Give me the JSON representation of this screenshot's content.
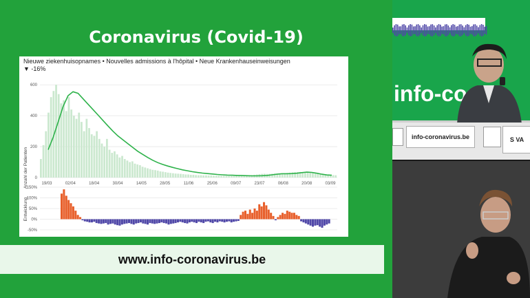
{
  "slide": {
    "title": "Coronavirus (Covid-19)",
    "url": "www.info-coronavirus.be"
  },
  "chart_header": {
    "title": "Nieuwe ziekenhuisopnames • Nouvelles admissions à l'hôpital • Neue Krankenhauseinweisungen",
    "change": "▼ -16%"
  },
  "chart_data": [
    {
      "type": "bar",
      "title": "Nieuwe ziekenhuisopnames • Nouvelles admissions à l'hôpital • Neue Krankenhauseinweisungen",
      "ylabel": "Anzahl der Patienten",
      "ylim": [
        0,
        650
      ],
      "yticks": [
        "600",
        "400",
        "200",
        "0"
      ],
      "xticks": [
        "19/03",
        "02/04",
        "18/04",
        "30/04",
        "14/05",
        "28/05",
        "11/06",
        "25/06",
        "09/07",
        "23/07",
        "06/08",
        "20/08",
        "03/09"
      ],
      "series": [
        {
          "type": "bar",
          "values": [
            120,
            210,
            300,
            420,
            520,
            560,
            600,
            540,
            480,
            500,
            430,
            520,
            440,
            400,
            380,
            420,
            360,
            300,
            380,
            320,
            280,
            270,
            300,
            250,
            220,
            200,
            250,
            180,
            160,
            170,
            150,
            130,
            140,
            120,
            110,
            100,
            105,
            90,
            85,
            80,
            70,
            65,
            60,
            55,
            50,
            48,
            45,
            40,
            38,
            35,
            32,
            30,
            28,
            26,
            25,
            24,
            22,
            20,
            20,
            18,
            18,
            16,
            15,
            15,
            14,
            14,
            13,
            13,
            12,
            12,
            12,
            11,
            11,
            10,
            10,
            10,
            10,
            11,
            11,
            12,
            13,
            14,
            15,
            16,
            18,
            20,
            22,
            24,
            25,
            24,
            24,
            25,
            26,
            25,
            24,
            26,
            28,
            30,
            32,
            34,
            35,
            36,
            36,
            35,
            34,
            32,
            30,
            28,
            26,
            24,
            22,
            20,
            19,
            18,
            17,
            16,
            15
          ]
        },
        {
          "type": "line",
          "values": [
            180,
            260,
            360,
            460,
            530,
            555,
            545,
            510,
            475,
            440,
            405,
            370,
            335,
            300,
            270,
            245,
            220,
            195,
            170,
            150,
            130,
            112,
            97,
            85,
            75,
            66,
            58,
            50,
            44,
            38,
            33,
            29,
            26,
            23,
            20,
            18,
            16,
            15,
            14,
            13,
            12,
            11,
            11,
            12,
            14,
            18,
            22,
            25,
            25,
            26,
            28,
            32,
            35,
            33,
            28,
            22,
            17,
            15
          ]
        }
      ]
    },
    {
      "type": "bar",
      "ylabel": "Entwicklung",
      "ylim": [
        -50,
        150
      ],
      "yticks": [
        "150%",
        "100%",
        "50%",
        "0%",
        "-50%"
      ],
      "values": [
        120,
        140,
        110,
        90,
        75,
        60,
        40,
        20,
        10,
        -5,
        -10,
        -12,
        -15,
        -15,
        -12,
        -18,
        -20,
        -22,
        -20,
        -18,
        -25,
        -22,
        -20,
        -25,
        -28,
        -30,
        -25,
        -22,
        -20,
        -18,
        -22,
        -25,
        -20,
        -18,
        -15,
        -20,
        -22,
        -25,
        -18,
        -20,
        -22,
        -20,
        -18,
        -15,
        -18,
        -20,
        -25,
        -22,
        -20,
        -18,
        -15,
        -12,
        -15,
        -18,
        -20,
        -15,
        -12,
        -15,
        -18,
        -12,
        -15,
        -18,
        -12,
        -10,
        -15,
        -18,
        -12,
        -15,
        -10,
        -12,
        -15,
        -12,
        -10,
        -15,
        -12,
        -10,
        -8,
        20,
        35,
        40,
        25,
        45,
        30,
        50,
        40,
        70,
        60,
        80,
        65,
        45,
        30,
        15,
        -5,
        10,
        20,
        30,
        25,
        40,
        35,
        30,
        30,
        20,
        15,
        -10,
        -15,
        -20,
        -25,
        -30,
        -35,
        -30,
        -28,
        -35,
        -40,
        -30,
        -25,
        -20
      ]
    }
  ],
  "desk": {
    "sign": "info-coronavirus.be",
    "namecard": "S VA"
  },
  "colors": {
    "accent": "#22a23b",
    "positive": "#e8602c",
    "negative": "#5048a8",
    "line": "#2db24a"
  }
}
